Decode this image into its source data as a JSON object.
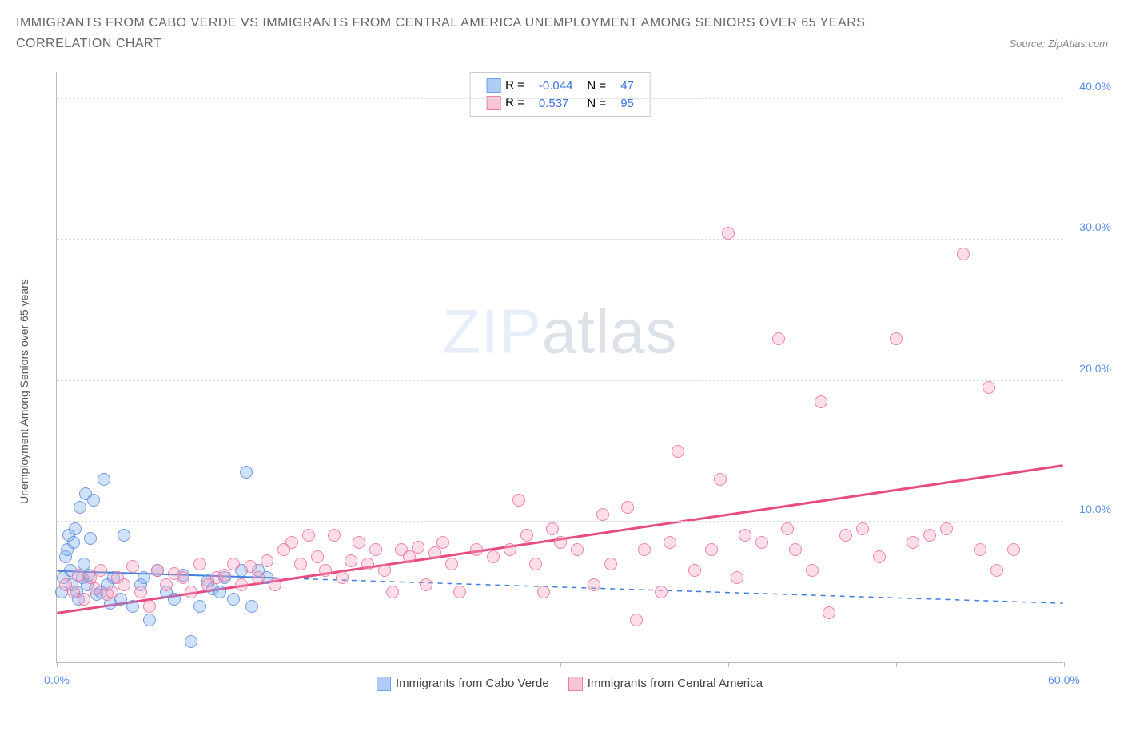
{
  "title_line1": "IMMIGRANTS FROM CABO VERDE VS IMMIGRANTS FROM CENTRAL AMERICA UNEMPLOYMENT AMONG SENIORS OVER 65 YEARS",
  "title_line2": "CORRELATION CHART",
  "source_prefix": "Source: ",
  "source_name": "ZipAtlas.com",
  "y_axis_label": "Unemployment Among Seniors over 65 years",
  "watermark_a": "ZIP",
  "watermark_b": "atlas",
  "chart": {
    "type": "scatter",
    "xlim": [
      0,
      60
    ],
    "ylim": [
      0,
      42
    ],
    "x_ticks": [
      0,
      10,
      20,
      30,
      40,
      50,
      60
    ],
    "x_tick_labels": [
      "0.0%",
      "",
      "",
      "",
      "",
      "",
      "60.0%"
    ],
    "y_ticks": [
      10,
      20,
      30,
      40
    ],
    "y_tick_labels": [
      "10.0%",
      "20.0%",
      "30.0%",
      "40.0%"
    ],
    "grid_color": "#dddddd",
    "axis_color": "#bbbbbb",
    "background_color": "#ffffff",
    "tick_label_color": "#5b8def",
    "marker_radius": 8,
    "series": [
      {
        "key": "a",
        "name": "Immigrants from Cabo Verde",
        "fill": "rgba(120,170,240,0.35)",
        "stroke": "rgba(90,140,220,0.8)",
        "swatch_fill": "#aeccf5",
        "swatch_stroke": "#6fa4e8",
        "R": "-0.044",
        "N": "47",
        "trend": {
          "x1": 0,
          "y1": 6.5,
          "x2": 60,
          "y2": 4.2,
          "color": "#3d7de0",
          "width": 2,
          "dash_after_x": 13
        },
        "points": [
          [
            0.3,
            5.0
          ],
          [
            0.4,
            6.0
          ],
          [
            0.5,
            7.5
          ],
          [
            0.6,
            8.0
          ],
          [
            0.7,
            9.0
          ],
          [
            0.8,
            6.5
          ],
          [
            0.9,
            5.5
          ],
          [
            1.0,
            8.5
          ],
          [
            1.1,
            9.5
          ],
          [
            1.2,
            5.0
          ],
          [
            1.3,
            4.5
          ],
          [
            1.4,
            11.0
          ],
          [
            1.5,
            6.0
          ],
          [
            1.6,
            7.0
          ],
          [
            1.7,
            12.0
          ],
          [
            1.8,
            5.5
          ],
          [
            1.9,
            6.2
          ],
          [
            2.0,
            8.8
          ],
          [
            2.2,
            11.5
          ],
          [
            2.4,
            4.8
          ],
          [
            2.6,
            5.0
          ],
          [
            2.8,
            13.0
          ],
          [
            3.0,
            5.5
          ],
          [
            3.2,
            4.2
          ],
          [
            3.4,
            6.0
          ],
          [
            3.8,
            4.5
          ],
          [
            4.0,
            9.0
          ],
          [
            4.5,
            4.0
          ],
          [
            5.0,
            5.5
          ],
          [
            5.2,
            6.0
          ],
          [
            5.5,
            3.0
          ],
          [
            6.0,
            6.5
          ],
          [
            6.5,
            5.0
          ],
          [
            7.0,
            4.5
          ],
          [
            7.5,
            6.2
          ],
          [
            8.0,
            1.5
          ],
          [
            8.5,
            4.0
          ],
          [
            9.0,
            5.8
          ],
          [
            9.3,
            5.2
          ],
          [
            9.7,
            5.0
          ],
          [
            10.0,
            6.0
          ],
          [
            10.5,
            4.5
          ],
          [
            11.0,
            6.5
          ],
          [
            11.3,
            13.5
          ],
          [
            11.6,
            4.0
          ],
          [
            12.0,
            6.5
          ],
          [
            12.5,
            6.0
          ]
        ]
      },
      {
        "key": "b",
        "name": "Immigrants from Central America",
        "fill": "rgba(250,160,190,0.35)",
        "stroke": "rgba(235,110,150,0.8)",
        "swatch_fill": "#f7c6d6",
        "swatch_stroke": "#ec7fa6",
        "R": "0.537",
        "N": "95",
        "trend": {
          "x1": 0,
          "y1": 3.5,
          "x2": 60,
          "y2": 14.0,
          "color": "#e84a82",
          "width": 3,
          "dash_after_x": 60
        },
        "points": [
          [
            0.5,
            5.5
          ],
          [
            1.0,
            5.0
          ],
          [
            1.3,
            6.2
          ],
          [
            1.6,
            4.5
          ],
          [
            2.0,
            6.0
          ],
          [
            2.3,
            5.2
          ],
          [
            2.6,
            6.5
          ],
          [
            3.0,
            4.8
          ],
          [
            3.3,
            5.0
          ],
          [
            3.6,
            6.0
          ],
          [
            4.0,
            5.5
          ],
          [
            4.5,
            6.8
          ],
          [
            5.0,
            5.0
          ],
          [
            5.5,
            4.0
          ],
          [
            6.0,
            6.5
          ],
          [
            6.5,
            5.5
          ],
          [
            7.0,
            6.3
          ],
          [
            7.5,
            6.0
          ],
          [
            8.0,
            5.0
          ],
          [
            8.5,
            7.0
          ],
          [
            9.0,
            5.5
          ],
          [
            9.5,
            6.0
          ],
          [
            10.0,
            6.2
          ],
          [
            10.5,
            7.0
          ],
          [
            11.0,
            5.5
          ],
          [
            11.5,
            6.8
          ],
          [
            12.0,
            6.0
          ],
          [
            12.5,
            7.2
          ],
          [
            13.0,
            5.5
          ],
          [
            13.5,
            8.0
          ],
          [
            14.0,
            8.5
          ],
          [
            14.5,
            7.0
          ],
          [
            15.0,
            9.0
          ],
          [
            15.5,
            7.5
          ],
          [
            16.0,
            6.5
          ],
          [
            16.5,
            9.0
          ],
          [
            17.0,
            6.0
          ],
          [
            17.5,
            7.2
          ],
          [
            18.0,
            8.5
          ],
          [
            18.5,
            7.0
          ],
          [
            19.0,
            8.0
          ],
          [
            19.5,
            6.5
          ],
          [
            20.0,
            5.0
          ],
          [
            20.5,
            8.0
          ],
          [
            21.0,
            7.5
          ],
          [
            21.5,
            8.2
          ],
          [
            22.0,
            5.5
          ],
          [
            22.5,
            7.8
          ],
          [
            23.0,
            8.5
          ],
          [
            23.5,
            7.0
          ],
          [
            24.0,
            5.0
          ],
          [
            25.0,
            8.0
          ],
          [
            26.0,
            7.5
          ],
          [
            27.0,
            8.0
          ],
          [
            27.5,
            11.5
          ],
          [
            28.0,
            9.0
          ],
          [
            28.5,
            7.0
          ],
          [
            29.0,
            5.0
          ],
          [
            29.5,
            9.5
          ],
          [
            30.0,
            8.5
          ],
          [
            31.0,
            8.0
          ],
          [
            32.0,
            5.5
          ],
          [
            32.5,
            10.5
          ],
          [
            33.0,
            7.0
          ],
          [
            34.0,
            11.0
          ],
          [
            34.5,
            3.0
          ],
          [
            35.0,
            8.0
          ],
          [
            36.0,
            5.0
          ],
          [
            36.5,
            8.5
          ],
          [
            37.0,
            15.0
          ],
          [
            38.0,
            6.5
          ],
          [
            39.0,
            8.0
          ],
          [
            39.5,
            13.0
          ],
          [
            40.0,
            30.5
          ],
          [
            40.5,
            6.0
          ],
          [
            41.0,
            9.0
          ],
          [
            42.0,
            8.5
          ],
          [
            43.0,
            23.0
          ],
          [
            43.5,
            9.5
          ],
          [
            44.0,
            8.0
          ],
          [
            45.0,
            6.5
          ],
          [
            45.5,
            18.5
          ],
          [
            46.0,
            3.5
          ],
          [
            47.0,
            9.0
          ],
          [
            48.0,
            9.5
          ],
          [
            49.0,
            7.5
          ],
          [
            50.0,
            23.0
          ],
          [
            51.0,
            8.5
          ],
          [
            52.0,
            9.0
          ],
          [
            53.0,
            9.5
          ],
          [
            54.0,
            29.0
          ],
          [
            55.0,
            8.0
          ],
          [
            55.5,
            19.5
          ],
          [
            56.0,
            6.5
          ],
          [
            57.0,
            8.0
          ]
        ]
      }
    ]
  },
  "legend_box": {
    "r_label": "R =",
    "n_label": "N ="
  }
}
